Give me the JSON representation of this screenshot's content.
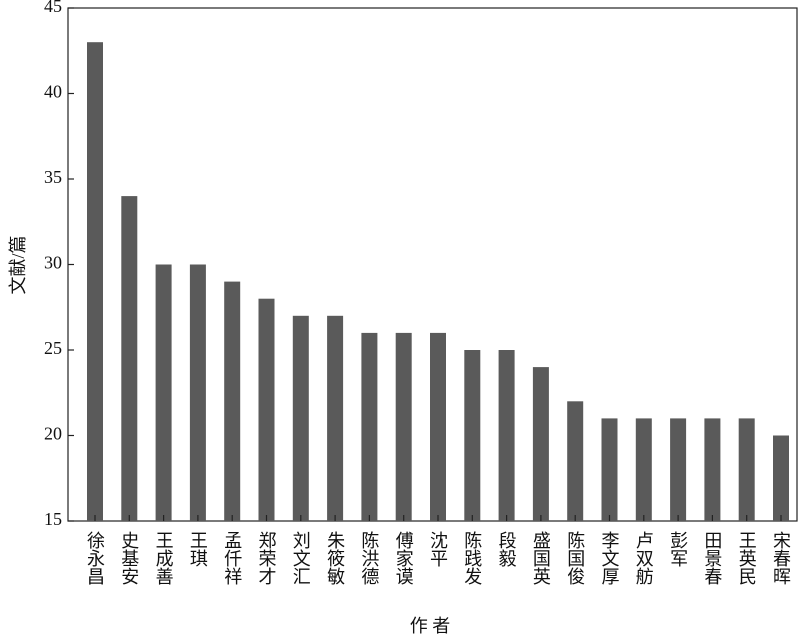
{
  "chart_data": {
    "type": "bar",
    "x_label": "作 者",
    "y_label": "文献/篇",
    "categories": [
      "徐永昌",
      "史基安",
      "王成善",
      "王琪",
      "孟仟祥",
      "郑荣才",
      "刘文汇",
      "朱筱敏",
      "陈洪德",
      "傅家谟",
      "沈平",
      "陈践发",
      "段毅",
      "盛国英",
      "陈国俊",
      "李文厚",
      "卢双舫",
      "彭军",
      "田景春",
      "王英民",
      "宋春晖"
    ],
    "values": [
      43,
      34,
      30,
      30,
      29,
      28,
      27,
      27,
      26,
      26,
      26,
      25,
      25,
      24,
      22,
      21,
      21,
      21,
      21,
      21,
      20
    ],
    "color": "#5a5a5a",
    "ylim": [
      15,
      45
    ],
    "yticks": [
      15,
      20,
      25,
      30,
      35,
      40,
      45
    ]
  }
}
